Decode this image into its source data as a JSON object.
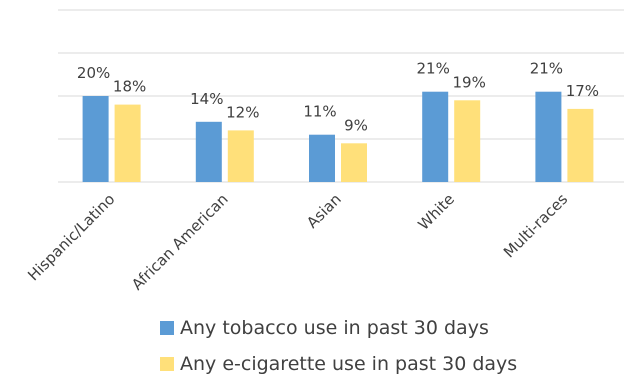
{
  "chart_data": {
    "type": "bar",
    "title": "",
    "xlabel": "",
    "ylabel": "",
    "categories": [
      "Hispanic/Latino",
      "African American",
      "Asian",
      "White",
      "Multi-races"
    ],
    "series": [
      {
        "name": "Any tobacco use in past 30 days",
        "values": [
          20,
          14,
          11,
          21,
          21
        ],
        "labels": [
          "20%",
          "14%",
          "11%",
          "21%",
          "21%"
        ],
        "color": "#5B9BD5"
      },
      {
        "name": "Any e-cigarette use in past 30 days",
        "values": [
          18,
          12,
          9,
          19,
          17
        ],
        "labels": [
          "18%",
          "12%",
          "9%",
          "19%",
          "17%"
        ],
        "color": "#FFE07A"
      }
    ],
    "ylim": [
      0,
      40
    ],
    "gridlines": [
      0,
      10,
      20,
      30,
      40
    ],
    "grid": true,
    "y_tick_labels_shown": false,
    "legend_position": "bottom"
  }
}
